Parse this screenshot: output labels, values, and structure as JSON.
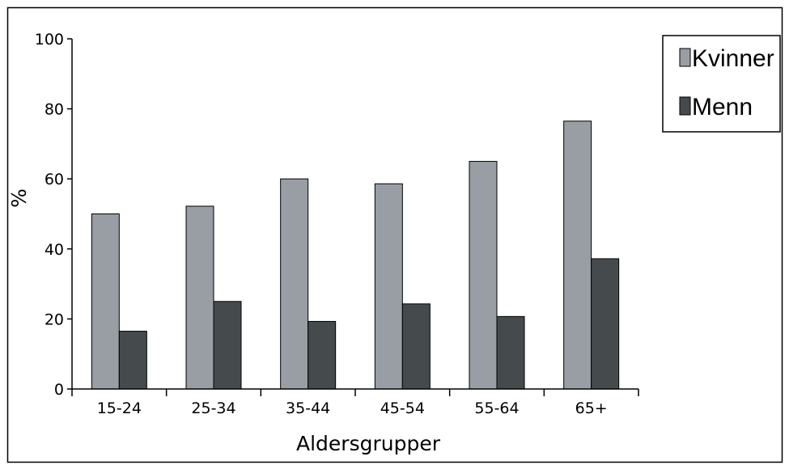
{
  "chart_data": {
    "type": "bar",
    "categories": [
      "15-24",
      "25-34",
      "35-44",
      "45-54",
      "55-64",
      "65+"
    ],
    "series": [
      {
        "name": "Kvinner",
        "values": [
          50,
          52.2,
          60,
          58.6,
          65,
          76.5
        ],
        "color": "#999ea4"
      },
      {
        "name": "Menn",
        "values": [
          16.5,
          25,
          19.3,
          24.3,
          20.7,
          37.2
        ],
        "color": "#454b4d"
      }
    ],
    "xlabel": "Aldersgrupper",
    "ylabel": "%",
    "ylim": [
      0,
      100
    ],
    "yticks": [
      0,
      20,
      40,
      60,
      80,
      100
    ],
    "grid": false,
    "legend_position": "top-right"
  }
}
